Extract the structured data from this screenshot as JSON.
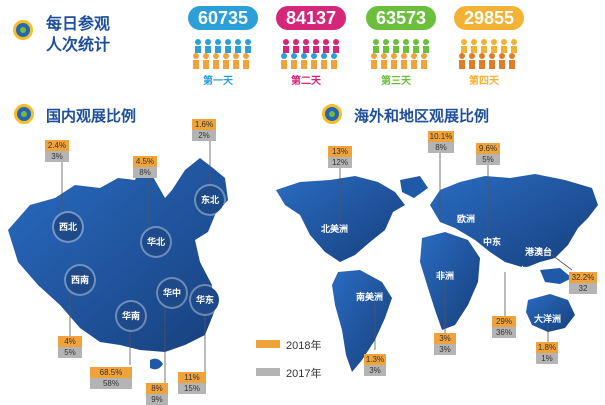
{
  "daily": {
    "title_line1": "每日参观",
    "title_line2": "人次统计",
    "days": [
      {
        "count": "60735",
        "label": "第一天",
        "color": "#2b9fd8"
      },
      {
        "count": "84137",
        "label": "第二天",
        "color": "#d6267a"
      },
      {
        "count": "63573",
        "label": "第三天",
        "color": "#6cbf3c"
      },
      {
        "count": "29855",
        "label": "第四天",
        "color": "#f3b234"
      }
    ]
  },
  "domestic": {
    "title": "国内观展比例",
    "regions": [
      {
        "name": "西北",
        "v2018": "2.4%",
        "v2017": "3%"
      },
      {
        "name": "华北",
        "v2018": "4.5%",
        "v2017": "8%"
      },
      {
        "name": "东北",
        "v2018": "1.6%",
        "v2017": "2%"
      },
      {
        "name": "西南",
        "v2018": "4%",
        "v2017": "5%"
      },
      {
        "name": "华南",
        "v2018": "68.5%",
        "v2017": "58%"
      },
      {
        "name": "华中",
        "v2018": "8%",
        "v2017": "9%"
      },
      {
        "name": "华东",
        "v2018": "11%",
        "v2017": "15%"
      }
    ]
  },
  "overseas": {
    "title": "海外和地区观展比例",
    "regions": [
      {
        "name": "北美洲",
        "v2018": "13%",
        "v2017": "12%"
      },
      {
        "name": "欧洲",
        "v2018": "10.1%",
        "v2017": "8%"
      },
      {
        "name": "中东",
        "v2018": "9.6%",
        "v2017": "5%"
      },
      {
        "name": "南美洲",
        "v2018": "1.3%",
        "v2017": "3%"
      },
      {
        "name": "非洲",
        "v2018": "3%",
        "v2017": "3%"
      },
      {
        "name": "东南亚",
        "v2018": "29%",
        "v2017": "36%"
      },
      {
        "name": "港澳台",
        "v2018": "32.2%",
        "v2017": "32"
      },
      {
        "name": "大洋洲",
        "v2018": "1.8%",
        "v2017": "1%"
      }
    ]
  },
  "legend": {
    "y2018": "2018年",
    "y2017": "2017年",
    "color_2018": "#f0a33a",
    "color_2017": "#b4b4b4"
  },
  "colors": {
    "map": "#1f5aa8",
    "title": "#1f4f9a"
  }
}
